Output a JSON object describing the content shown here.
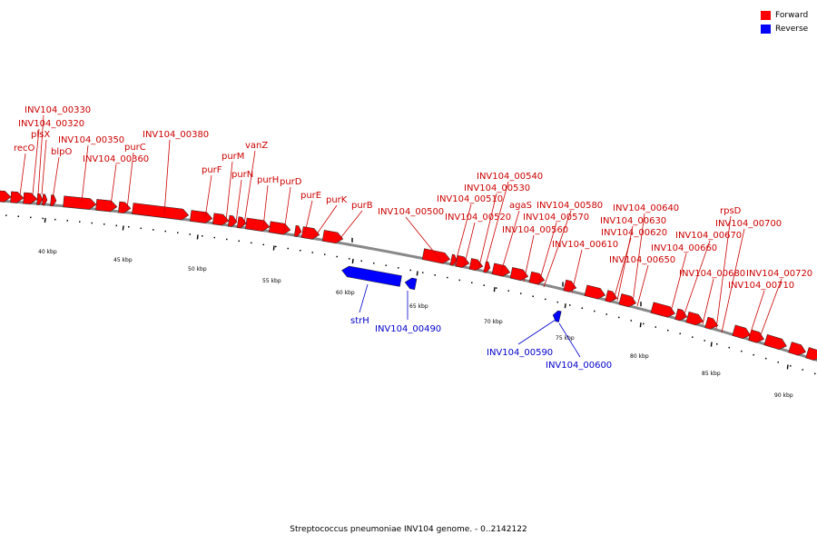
{
  "caption": "Streptococcus pneumoniae INV104 genome. - 0..2142122",
  "legend": [
    {
      "label": "Forward",
      "color": "#ff0000"
    },
    {
      "label": "Reverse",
      "color": "#0000ff"
    }
  ],
  "axis": {
    "unit": "kbp",
    "ticks": [
      "40 kbp",
      "45 kbp",
      "50 kbp",
      "55 kbp",
      "60 kbp",
      "65 kbp",
      "70 kbp",
      "75 kbp",
      "80 kbp",
      "85 kbp",
      "90 kbp"
    ]
  },
  "colors": {
    "forward": "#ff0000",
    "reverse": "#0000ff",
    "forward_label": "#cc0000",
    "reverse_label": "#0000cc",
    "backbone": "#888888"
  },
  "forward_genes": [
    {
      "label": "recO"
    },
    {
      "label": "INV104_00320"
    },
    {
      "label": "INV104_00330"
    },
    {
      "label": "plsX"
    },
    {
      "label": "blpO"
    },
    {
      "label": "INV104_00350"
    },
    {
      "label": "INV104_00360"
    },
    {
      "label": "purC"
    },
    {
      "label": "INV104_00380"
    },
    {
      "label": "purF"
    },
    {
      "label": "purM"
    },
    {
      "label": "purN"
    },
    {
      "label": "vanZ"
    },
    {
      "label": "purH"
    },
    {
      "label": "purD"
    },
    {
      "label": "purE"
    },
    {
      "label": "purK"
    },
    {
      "label": "purB"
    },
    {
      "label": "INV104_00500"
    },
    {
      "label": "INV104_00510"
    },
    {
      "label": "INV104_00520"
    },
    {
      "label": "INV104_00530"
    },
    {
      "label": "INV104_00540"
    },
    {
      "label": "agaS"
    },
    {
      "label": "INV104_00560"
    },
    {
      "label": "INV104_00570"
    },
    {
      "label": "INV104_00580"
    },
    {
      "label": "INV104_00610"
    },
    {
      "label": "INV104_00620"
    },
    {
      "label": "INV104_00630"
    },
    {
      "label": "INV104_00640"
    },
    {
      "label": "INV104_00650"
    },
    {
      "label": "INV104_00660"
    },
    {
      "label": "INV104_00670"
    },
    {
      "label": "INV104_00680"
    },
    {
      "label": "rpsD"
    },
    {
      "label": "INV104_00700"
    },
    {
      "label": "INV104_00710"
    },
    {
      "label": "INV104_00720"
    }
  ],
  "reverse_genes": [
    {
      "label": "strH"
    },
    {
      "label": "INV104_00490"
    },
    {
      "label": "INV104_00590"
    },
    {
      "label": "INV104_00600"
    }
  ]
}
